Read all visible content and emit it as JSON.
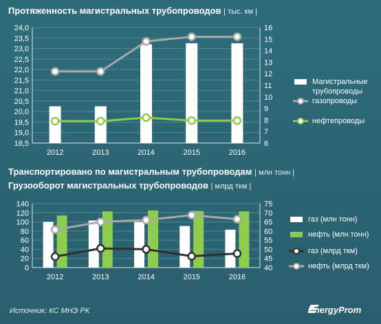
{
  "titles": {
    "top_main": "Протяженность магистральных трубопроводов",
    "top_unit": "| тыс. км |",
    "bottom_main1": "Транспортировано по магистральным трубопроводам",
    "bottom_unit1": "| млн тонн |",
    "bottom_main2": "Грузооборот магистральных трубопроводов",
    "bottom_unit2": "| млрд ткм |"
  },
  "footer": {
    "source": "Источник: КС МНЭ РК",
    "logo": "EnergyProm"
  },
  "colors": {
    "background": "#2e6a78",
    "bar_white": "#ffffff",
    "bar_green": "#8dcc4e",
    "line_gray": "#a9a9a9",
    "line_green": "#8dcc4e",
    "line_dark": "#2f2f2f",
    "grid": "#4f8794"
  },
  "chart_data": [
    {
      "type": "bar",
      "categories": [
        "2012",
        "2013",
        "2014",
        "2015",
        "2016"
      ],
      "left_ticks": [
        "18,5",
        "19,0",
        "19,5",
        "20,0",
        "20,5",
        "21,0",
        "21,5",
        "22,0",
        "22,5",
        "23,0",
        "23,5",
        "24,0"
      ],
      "right_ticks": [
        "6",
        "7",
        "8",
        "9",
        "10",
        "11",
        "12",
        "13",
        "14",
        "15",
        "16"
      ],
      "ylim_left": [
        18.5,
        24.0
      ],
      "ylim_right": [
        6,
        16
      ],
      "grid": true,
      "legend_position": "right",
      "series": [
        {
          "name": "Магистральные трубопроводы",
          "kind": "bar",
          "axis": "left",
          "values": [
            20.25,
            20.25,
            23.2,
            23.25,
            23.25
          ]
        },
        {
          "name": "газопроводы",
          "kind": "line",
          "axis": "right",
          "values": [
            12.2,
            12.2,
            14.8,
            15.2,
            15.2
          ]
        },
        {
          "name": "нефтепроводы",
          "kind": "line",
          "axis": "right",
          "values": [
            7.9,
            7.9,
            8.2,
            7.95,
            7.95
          ]
        }
      ],
      "legend": [
        {
          "label_line1": "Магистральные",
          "label_line2": "трубопроводы"
        },
        {
          "label_line1": "газопроводы"
        },
        {
          "label_line1": "нефтепроводы"
        }
      ]
    },
    {
      "type": "bar",
      "categories": [
        "2012",
        "2013",
        "2014",
        "2015",
        "2016"
      ],
      "left_ticks": [
        "0",
        "20",
        "40",
        "60",
        "80",
        "100",
        "120",
        "140"
      ],
      "right_ticks": [
        "40",
        "45",
        "50",
        "55",
        "60",
        "65",
        "70",
        "75"
      ],
      "ylim_left": [
        0,
        140
      ],
      "ylim_right": [
        40,
        75
      ],
      "grid": true,
      "legend_position": "right",
      "series": [
        {
          "name": "газ (млн тонн)",
          "kind": "bar",
          "axis": "left",
          "values": [
            100,
            103,
            100,
            91,
            83
          ]
        },
        {
          "name": "нефть (млн тонн)",
          "kind": "bar",
          "axis": "left",
          "values": [
            114,
            123,
            125,
            124,
            123
          ]
        },
        {
          "name": "газ (млрд ткм)",
          "kind": "line",
          "axis": "right",
          "values": [
            46,
            50.5,
            50,
            46.2,
            47.7
          ]
        },
        {
          "name": "нефть (млрд ткм)",
          "kind": "line",
          "axis": "right",
          "values": [
            60.7,
            65,
            66,
            68.7,
            66.5
          ]
        }
      ],
      "legend": [
        {
          "label_line1": "газ (млн тонн)"
        },
        {
          "label_line1": "нефть (млн тонн)"
        },
        {
          "label_line1": "газ (млрд ткм)"
        },
        {
          "label_line1": "нефть (млрд ткм)"
        }
      ]
    }
  ]
}
